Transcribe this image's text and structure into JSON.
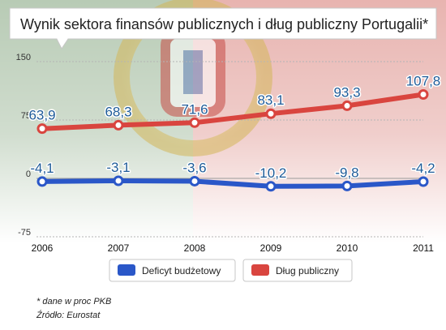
{
  "chart_data": {
    "type": "line",
    "title": "Wynik sektora finansów publicznych i dług publiczny Portugalii*",
    "categories": [
      "2006",
      "2007",
      "2008",
      "2009",
      "2010",
      "2011"
    ],
    "series": [
      {
        "name": "Deficyt budżetowy",
        "color": "#2a57c8",
        "values": [
          -4.1,
          -3.1,
          -3.6,
          -10.2,
          -9.8,
          -4.2
        ],
        "labels": [
          "-4,1",
          "-3,1",
          "-3,6",
          "-10,2",
          "-9,8",
          "-4,2"
        ]
      },
      {
        "name": "Dług publiczny",
        "color": "#d9453f",
        "values": [
          63.9,
          68.3,
          71.6,
          83.1,
          93.3,
          107.8
        ],
        "labels": [
          "63,9",
          "68,3",
          "71,6",
          "83,1",
          "93,3",
          "107,8"
        ]
      }
    ],
    "ylim": [
      -75,
      150
    ],
    "yticks": [
      "150",
      "75",
      "0",
      "-75"
    ],
    "xlabel": "",
    "ylabel": "",
    "grid": true,
    "legend_position": "bottom"
  },
  "footnote": {
    "note": "* dane w proc PKB",
    "source": "Źródło: Eurostat"
  }
}
